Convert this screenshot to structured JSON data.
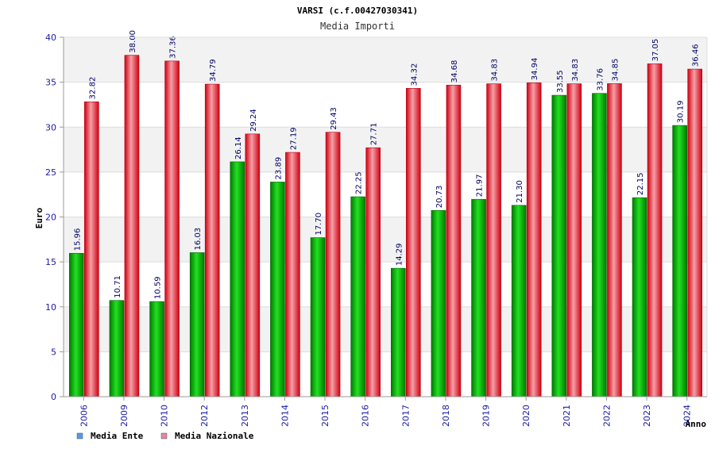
{
  "chart_data": {
    "type": "bar",
    "title": "VARSI (c.f.00427030341)",
    "subtitle": "Media Importi",
    "xlabel": "Anno",
    "ylabel": "Euro",
    "ylim": [
      0,
      40
    ],
    "yticks": [
      0,
      5,
      10,
      15,
      20,
      25,
      30,
      35,
      40
    ],
    "grid": true,
    "legend_position": "bottom-left",
    "categories": [
      "2006",
      "2009",
      "2010",
      "2012",
      "2013",
      "2014",
      "2015",
      "2016",
      "2017",
      "2018",
      "2019",
      "2020",
      "2021",
      "2022",
      "2023",
      "2024"
    ],
    "series": [
      {
        "name": "Media Ente",
        "color": "#00aa00",
        "legend_color": "#5599ee",
        "values": [
          15.96,
          10.71,
          10.59,
          16.03,
          26.14,
          23.89,
          17.7,
          22.25,
          14.29,
          20.73,
          21.97,
          21.3,
          33.55,
          33.76,
          22.15,
          30.19
        ],
        "labels": [
          "15.96",
          "10.71",
          "10.59",
          "16.03",
          "26.14",
          "23.89",
          "17.70",
          "22.25",
          "14.29",
          "20.73",
          "21.97",
          "21.30",
          "33.55",
          "33.76",
          "22.15",
          "30.19"
        ]
      },
      {
        "name": "Media Nazionale",
        "color": "#ee1122",
        "legend_color": "#dd88aa",
        "values": [
          32.82,
          38.0,
          37.36,
          34.79,
          29.24,
          27.19,
          29.43,
          27.71,
          34.32,
          34.68,
          34.83,
          34.94,
          34.83,
          34.85,
          37.05,
          36.46
        ],
        "labels": [
          "32.82",
          "38.00",
          "37.36",
          "34.79",
          "29.24",
          "27.19",
          "29.43",
          "27.71",
          "34.32",
          "34.68",
          "34.83",
          "34.94",
          "34.83",
          "34.85",
          "37.05",
          "36.46"
        ]
      }
    ]
  }
}
